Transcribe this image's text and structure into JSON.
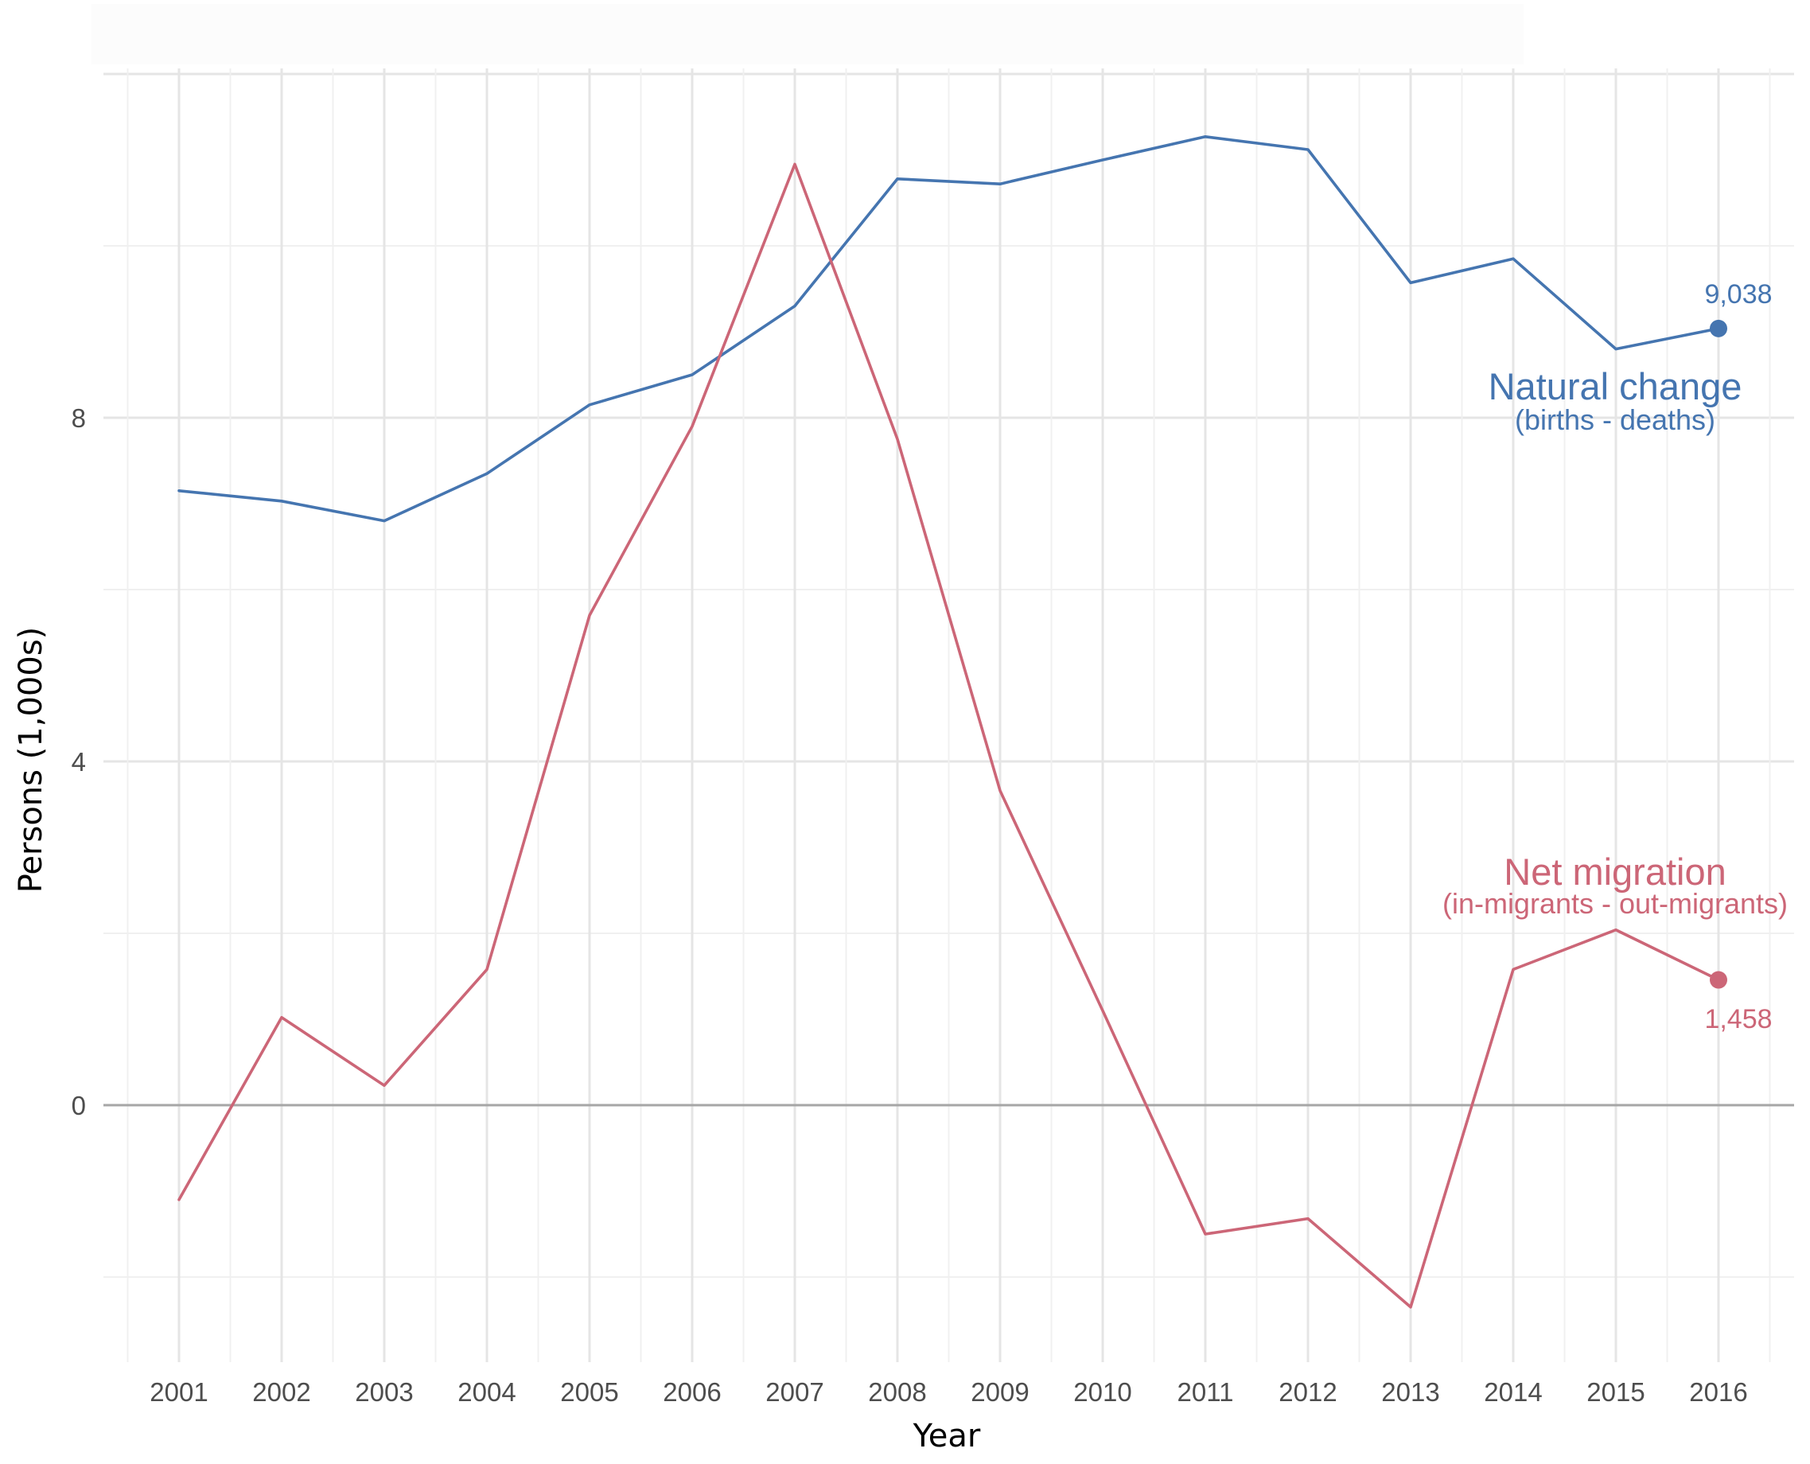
{
  "chart_data": {
    "type": "line",
    "title": "",
    "xlabel": "Year",
    "ylabel": "Persons (1,000s)",
    "x": [
      2001,
      2002,
      2003,
      2004,
      2005,
      2006,
      2007,
      2008,
      2009,
      2010,
      2011,
      2012,
      2013,
      2014,
      2015,
      2016
    ],
    "x_tick_labels": [
      "2001",
      "2002",
      "2003",
      "2004",
      "2005",
      "2006",
      "2007",
      "2008",
      "2009",
      "2010",
      "2011",
      "2012",
      "2013",
      "2014",
      "2015",
      "2016"
    ],
    "y_ticks": [
      0,
      4,
      8
    ],
    "y_tick_labels": [
      "0",
      "4",
      "8"
    ],
    "ylim": [
      -3,
      12.2
    ],
    "xlim": [
      2000.4,
      2016.8
    ],
    "grid": true,
    "legend": "none",
    "series": [
      {
        "name": "Natural change",
        "color": "#4575b0",
        "values": [
          7.15,
          7.03,
          6.8,
          7.35,
          8.15,
          8.5,
          9.3,
          10.78,
          10.72,
          11.0,
          11.27,
          11.12,
          9.57,
          9.85,
          8.8,
          9.038
        ]
      },
      {
        "name": "Net migration",
        "color": "#cc6677",
        "values": [
          -1.1,
          1.02,
          0.23,
          1.58,
          5.7,
          7.9,
          10.95,
          7.75,
          3.66,
          1.1,
          -1.5,
          -1.32,
          -2.35,
          1.58,
          2.04,
          1.458
        ]
      }
    ],
    "annotations": [
      {
        "series": 0,
        "title": "Natural change",
        "subtitle": "(births - deaths)",
        "end_label": "9,038"
      },
      {
        "series": 1,
        "title": "Net migration",
        "subtitle": "(in-migrants - out-migrants)",
        "end_label": "1,458"
      }
    ]
  }
}
